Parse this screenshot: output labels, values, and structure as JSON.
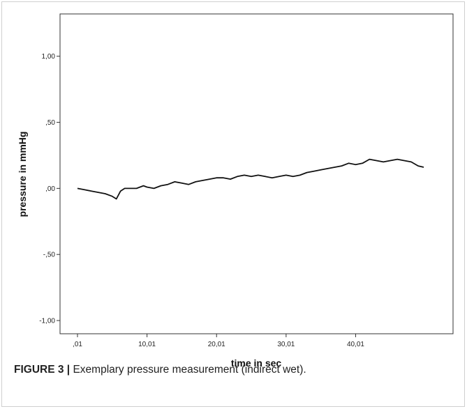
{
  "chart_data": {
    "type": "line",
    "title": "",
    "xlabel": "time in sec",
    "ylabel": "pressure in mmHg",
    "xlim": [
      0.01,
      50.0
    ],
    "ylim": [
      -1.1,
      1.32
    ],
    "x_ticks": [
      0.01,
      10.01,
      20.01,
      30.01,
      40.01
    ],
    "x_tick_labels": [
      ",01",
      "10,01",
      "20,01",
      "30,01",
      "40,01"
    ],
    "y_ticks": [
      1.0,
      0.5,
      0.0,
      -0.5,
      -1.0
    ],
    "y_tick_labels": [
      "1,00",
      ",50",
      ",00",
      "-,50",
      "-1,00"
    ],
    "grid": false,
    "series": [
      {
        "color": "#111111",
        "x": [
          0.01,
          1.0,
          2.0,
          3.0,
          4.0,
          5.0,
          5.6,
          6.2,
          6.8,
          7.5,
          8.5,
          9.5,
          10.0,
          11.0,
          12.0,
          13.0,
          14.0,
          15.0,
          16.0,
          17.0,
          18.0,
          19.0,
          20.0,
          21.0,
          22.0,
          23.0,
          24.0,
          25.0,
          26.0,
          27.0,
          28.0,
          29.0,
          30.0,
          31.0,
          32.0,
          33.0,
          34.0,
          35.0,
          36.0,
          37.0,
          38.0,
          39.0,
          40.0,
          41.0,
          42.0,
          43.0,
          44.0,
          45.0,
          46.0,
          47.0,
          48.0,
          49.0,
          49.8
        ],
        "y": [
          0.0,
          -0.01,
          -0.02,
          -0.03,
          -0.04,
          -0.06,
          -0.08,
          -0.02,
          0.0,
          0.0,
          0.0,
          0.02,
          0.01,
          0.0,
          0.02,
          0.03,
          0.05,
          0.04,
          0.03,
          0.05,
          0.06,
          0.07,
          0.08,
          0.08,
          0.07,
          0.09,
          0.1,
          0.09,
          0.1,
          0.09,
          0.08,
          0.09,
          0.1,
          0.09,
          0.1,
          0.12,
          0.13,
          0.14,
          0.15,
          0.16,
          0.17,
          0.19,
          0.18,
          0.19,
          0.22,
          0.21,
          0.2,
          0.21,
          0.22,
          0.21,
          0.2,
          0.17,
          0.16
        ]
      }
    ]
  },
  "caption": {
    "label": "FIGURE 3 |",
    "text": " Exemplary pressure measurement (indirect wet)."
  }
}
